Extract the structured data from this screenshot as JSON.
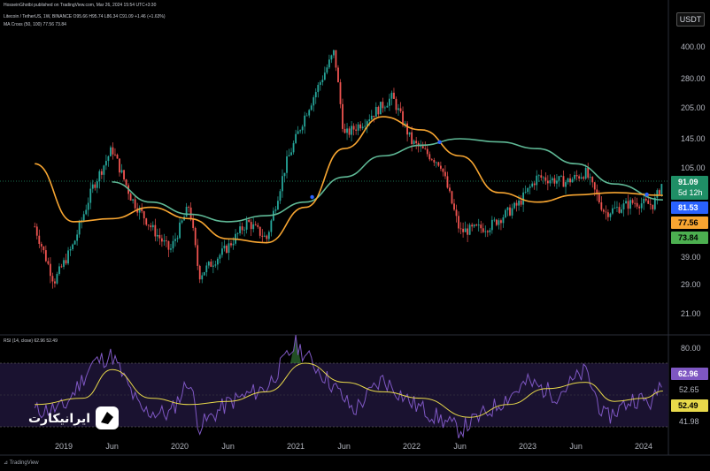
{
  "header": {
    "line1": "HosseinGhotbi published on TradingView.com, Mar 26, 2024 15:54 UTC+3:30",
    "line2": "Litecoin / TetherUS, 1W, BINANCE O95.66 H95.74 L86.34 C91.09 +1.46 (+1.63%)",
    "line3": "MA Cross (50, 100) 77.56 73.84"
  },
  "currency_button": "USDT",
  "footer": "TradingView",
  "watermark_text": "ایرانیکارت",
  "colors": {
    "up": "#26a69a",
    "down": "#ef5350",
    "ma50": "#f7a531",
    "ma100": "#5fb996",
    "rsi": "#7e57c2",
    "rsi_ma": "#e8d94a",
    "badge_price": "#1f8f66",
    "badge_blue": "#2962ff",
    "badge_orange": "#f7a531",
    "badge_green": "#4caf50",
    "badge_rsi": "#7e57c2",
    "badge_yellow": "#e8d94a"
  },
  "chart_data": [
    {
      "type": "candlestick",
      "title": "Litecoin / TetherUS, 1W, BINANCE",
      "y_scale": "log",
      "ylim": [
        17,
        480
      ],
      "y_ticks": [
        "400.00",
        "280.00",
        "205.00",
        "145.00",
        "105.00",
        "39.00",
        "29.00",
        "21.00"
      ],
      "x_ticks": [
        "2019",
        "Jun",
        "2020",
        "Jun",
        "2021",
        "Jun",
        "2022",
        "Jun",
        "2023",
        "Jun",
        "2024"
      ],
      "series": [
        {
          "name": "Litecoin",
          "close_path": [
            [
              "2018-10",
              55
            ],
            [
              "2018-12",
              30
            ],
            [
              "2019-02",
              45
            ],
            [
              "2019-04",
              85
            ],
            [
              "2019-06",
              130
            ],
            [
              "2019-08",
              75
            ],
            [
              "2019-10",
              55
            ],
            [
              "2019-12",
              42
            ],
            [
              "2020-02",
              70
            ],
            [
              "2020-03",
              32
            ],
            [
              "2020-06",
              44
            ],
            [
              "2020-08",
              58
            ],
            [
              "2020-10",
              48
            ],
            [
              "2020-12",
              110
            ],
            [
              "2021-02",
              190
            ],
            [
              "2021-05",
              380
            ],
            [
              "2021-06",
              150
            ],
            [
              "2021-08",
              175
            ],
            [
              "2021-11",
              230
            ],
            [
              "2022-01",
              140
            ],
            [
              "2022-04",
              110
            ],
            [
              "2022-06",
              52
            ],
            [
              "2022-09",
              55
            ],
            [
              "2022-12",
              70
            ],
            [
              "2023-02",
              95
            ],
            [
              "2023-05",
              90
            ],
            [
              "2023-07",
              100
            ],
            [
              "2023-09",
              64
            ],
            [
              "2023-12",
              72
            ],
            [
              "2024-02",
              70
            ],
            [
              "2024-03",
              91.09
            ]
          ]
        },
        {
          "name": "MA 50",
          "values": [
            [
              "2018-10",
              110
            ],
            [
              "2019-02",
              58
            ],
            [
              "2019-06",
              60
            ],
            [
              "2019-10",
              68
            ],
            [
              "2020-02",
              60
            ],
            [
              "2020-06",
              48
            ],
            [
              "2020-10",
              46
            ],
            [
              "2021-02",
              68
            ],
            [
              "2021-06",
              130
            ],
            [
              "2021-10",
              185
            ],
            [
              "2022-02",
              160
            ],
            [
              "2022-06",
              120
            ],
            [
              "2022-10",
              80
            ],
            [
              "2023-02",
              72
            ],
            [
              "2023-06",
              78
            ],
            [
              "2023-10",
              80
            ],
            [
              "2024-03",
              77.56
            ]
          ]
        },
        {
          "name": "MA 100",
          "values": [
            [
              "2019-06",
              90
            ],
            [
              "2019-10",
              72
            ],
            [
              "2020-02",
              63
            ],
            [
              "2020-06",
              58
            ],
            [
              "2020-10",
              62
            ],
            [
              "2021-02",
              72
            ],
            [
              "2021-06",
              95
            ],
            [
              "2021-10",
              120
            ],
            [
              "2022-02",
              135
            ],
            [
              "2022-06",
              145
            ],
            [
              "2022-10",
              140
            ],
            [
              "2023-02",
              130
            ],
            [
              "2023-06",
              110
            ],
            [
              "2023-10",
              88
            ],
            [
              "2024-03",
              73.84
            ]
          ]
        }
      ],
      "price_labels": {
        "last": "91.09",
        "countdown": "5d 12h",
        "crosshair": "81.53",
        "ma50": "77.56",
        "ma100": "73.84"
      }
    },
    {
      "type": "line",
      "title": "RSI (14, close) 62.96 52.49",
      "ylim": [
        20,
        90
      ],
      "y_ticks": [
        "80.00"
      ],
      "bands": [
        70,
        30
      ],
      "series": [
        {
          "name": "RSI",
          "values": [
            [
              "2018-10",
              40
            ],
            [
              "2019-01",
              42
            ],
            [
              "2019-04",
              70
            ],
            [
              "2019-06",
              75
            ],
            [
              "2019-09",
              40
            ],
            [
              "2019-12",
              38
            ],
            [
              "2020-02",
              60
            ],
            [
              "2020-03",
              30
            ],
            [
              "2020-06",
              45
            ],
            [
              "2020-10",
              55
            ],
            [
              "2021-01",
              82
            ],
            [
              "2021-05",
              55
            ],
            [
              "2021-07",
              40
            ],
            [
              "2021-10",
              60
            ],
            [
              "2022-01",
              45
            ],
            [
              "2022-06",
              28
            ],
            [
              "2022-09",
              40
            ],
            [
              "2023-01",
              58
            ],
            [
              "2023-04",
              50
            ],
            [
              "2023-07",
              65
            ],
            [
              "2023-09",
              35
            ],
            [
              "2023-12",
              48
            ],
            [
              "2024-02",
              45
            ],
            [
              "2024-03",
              62.96
            ]
          ]
        },
        {
          "name": "RSI MA",
          "values": [
            [
              "2018-10",
              44
            ],
            [
              "2019-03",
              48
            ],
            [
              "2019-06",
              66
            ],
            [
              "2019-10",
              48
            ],
            [
              "2020-02",
              44
            ],
            [
              "2020-06",
              46
            ],
            [
              "2020-10",
              52
            ],
            [
              "2021-02",
              70
            ],
            [
              "2021-06",
              58
            ],
            [
              "2021-10",
              52
            ],
            [
              "2022-02",
              48
            ],
            [
              "2022-07",
              36
            ],
            [
              "2022-11",
              44
            ],
            [
              "2023-03",
              54
            ],
            [
              "2023-07",
              58
            ],
            [
              "2023-10",
              46
            ],
            [
              "2024-01",
              48
            ],
            [
              "2024-03",
              52.49
            ]
          ]
        }
      ],
      "value_labels": {
        "rsi": "62.96",
        "upper": "52.65",
        "ma": "52.49",
        "lower": "41.98"
      }
    }
  ]
}
